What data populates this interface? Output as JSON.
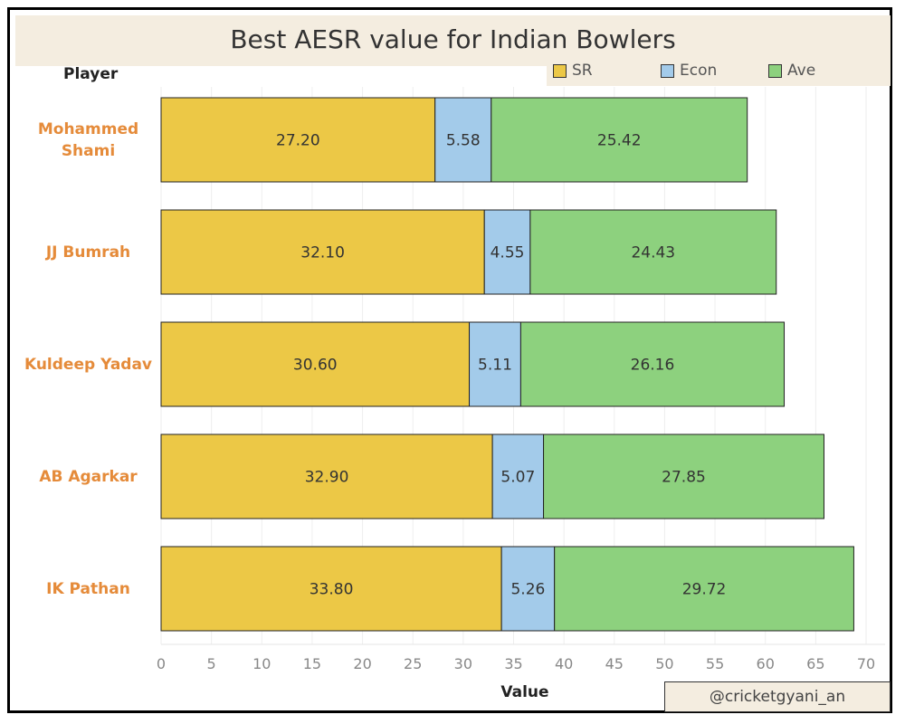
{
  "chart_data": {
    "type": "bar",
    "orientation": "horizontal",
    "stacked": true,
    "title": "Best AESR value for Indian Bowlers",
    "ylabel": "Player",
    "xlabel": "Value",
    "xlim": [
      0,
      70
    ],
    "xticks": [
      "0",
      "5",
      "10",
      "15",
      "20",
      "25",
      "30",
      "35",
      "40",
      "45",
      "50",
      "55",
      "60",
      "65",
      "70"
    ],
    "categories": [
      "Mohammed Shami",
      "JJ Bumrah",
      "Kuldeep Yadav",
      "AB Agarkar",
      "IK Pathan"
    ],
    "category_lines": [
      [
        "Mohammed",
        "Shami"
      ],
      [
        "JJ Bumrah"
      ],
      [
        "Kuldeep Yadav"
      ],
      [
        "AB Agarkar"
      ],
      [
        "IK Pathan"
      ]
    ],
    "series": [
      {
        "name": "SR",
        "color": "#ecc846",
        "values": [
          27.2,
          32.1,
          30.6,
          32.9,
          33.8
        ],
        "labels": [
          "27.20",
          "32.10",
          "30.60",
          "32.90",
          "33.80"
        ]
      },
      {
        "name": "Econ",
        "color": "#a3cbea",
        "values": [
          5.58,
          4.55,
          5.11,
          5.07,
          5.26
        ],
        "labels": [
          "5.58",
          "4.55",
          "5.11",
          "5.07",
          "5.26"
        ]
      },
      {
        "name": "Ave",
        "color": "#8dd17e",
        "values": [
          25.42,
          24.43,
          26.16,
          27.85,
          29.72
        ],
        "labels": [
          "25.42",
          "24.43",
          "26.16",
          "27.85",
          "29.72"
        ]
      }
    ],
    "legend_position": "top-right",
    "grid": "vertical"
  },
  "watermark": "@cricketgyani_an"
}
